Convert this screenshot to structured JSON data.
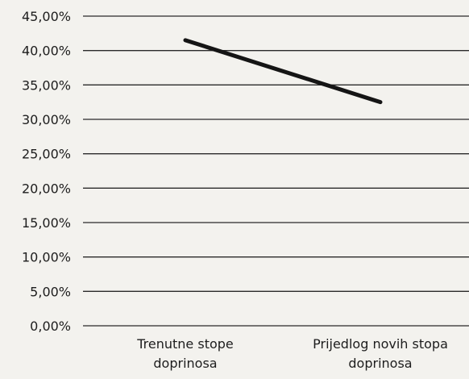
{
  "chart_data": {
    "type": "line",
    "categories": [
      "Trenutne stope\ndoprinosa",
      "Prijedlog novih stopa\ndoprinosa"
    ],
    "series": [
      {
        "values": [
          41.5,
          32.5
        ]
      }
    ],
    "y_ticks": [
      "0,00%",
      "5,00%",
      "10,00%",
      "15,00%",
      "20,00%",
      "25,00%",
      "30,00%",
      "35,00%",
      "40,00%",
      "45,00%"
    ],
    "ylim": [
      0,
      45
    ],
    "y_step": 5,
    "grid": true,
    "legend": "none",
    "title": "",
    "xlabel": "",
    "ylabel": "",
    "colors": {
      "background": "#f3f2ee",
      "gridline": "#2a2a2a",
      "line": "#151515",
      "text": "#1d1d1d"
    }
  }
}
